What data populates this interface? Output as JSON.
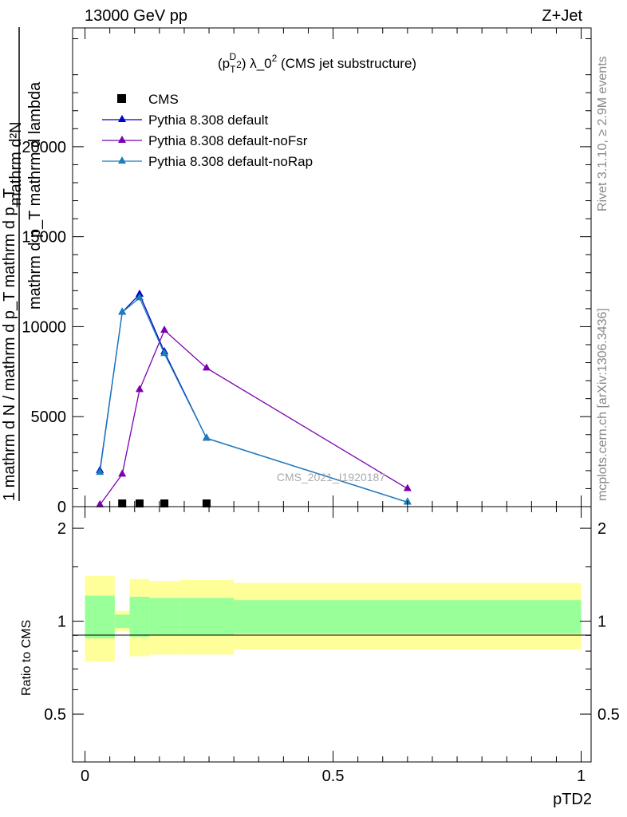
{
  "header": {
    "left": "13000 GeV pp",
    "right": "Z+Jet"
  },
  "plot_title": {
    "prefix": "(p",
    "sub": "T",
    "sup1": "D",
    "sup2": "2",
    "mid": ") λ_0",
    "sup3": "2",
    "suffix": " (CMS jet substructure)"
  },
  "side_labels": {
    "rivet": "Rivet 3.1.10, ≥ 2.9M events",
    "mcplots": "mcplots.cern.ch [arXiv:1306.3436]"
  },
  "watermark": "CMS_2021_I1920187",
  "ylabel_main": {
    "top_line": "mathrm d²N",
    "mid_line": "mathrm d p_T mathrm d lambda",
    "lower_line": "1  mathrm d N / mathrm d p_T mathrm d p_T",
    "bottom_line": "mathrm d N"
  },
  "ylabel_ratio": "Ratio to CMS",
  "xlabel": "pTD2",
  "colors": {
    "default": "#0000cc",
    "noFsr": "#7a00b0",
    "noRap": "#1a7fb8",
    "band_outer": "#ffff99",
    "band_inner": "#99ff99"
  },
  "chart_data": [
    {
      "type": "line",
      "xlim": [
        -0.025,
        1.02
      ],
      "ylim": [
        0,
        26600
      ],
      "y_ticks": [
        "0",
        "5000",
        "10000",
        "15000",
        "20000"
      ],
      "y_tick_values": [
        0,
        5000,
        10000,
        15000,
        20000
      ],
      "legend_position": "top-left",
      "data_x": [
        {
          "name": "CMS",
          "x": [
            0.075,
            0.11,
            0.16,
            0.245
          ],
          "y": [
            0,
            0,
            0,
            0
          ]
        }
      ],
      "series": [
        {
          "name": "Pythia 8.308 default",
          "color_key": "default",
          "x": [
            0.03,
            0.075,
            0.11,
            0.16,
            0.245,
            0.65
          ],
          "y": [
            2000,
            10800,
            11800,
            8600,
            3800,
            250
          ]
        },
        {
          "name": "Pythia 8.308 default-noFsr",
          "color_key": "noFsr",
          "x": [
            0.03,
            0.075,
            0.11,
            0.16,
            0.245,
            0.65
          ],
          "y": [
            100,
            1800,
            6500,
            9800,
            7700,
            1000
          ]
        },
        {
          "name": "Pythia 8.308 default-noRap",
          "color_key": "noRap",
          "x": [
            0.03,
            0.075,
            0.11,
            0.16,
            0.245,
            0.65
          ],
          "y": [
            1900,
            10800,
            11600,
            8500,
            3800,
            250
          ]
        }
      ]
    },
    {
      "type": "area",
      "xlim": [
        -0.025,
        1.02
      ],
      "ylim": [
        0.35,
        2.35
      ],
      "y_ticks": [
        "0.5",
        "1",
        "2"
      ],
      "y_tick_values": [
        0.5,
        1,
        2
      ],
      "x_ticks": [
        "0",
        "0.5",
        "1"
      ],
      "x_tick_values": [
        0,
        0.5,
        1
      ],
      "bands": [
        {
          "x0": 0.0,
          "x1": 0.06,
          "outer": [
            0.74,
            1.4
          ],
          "inner": [
            0.88,
            1.21
          ]
        },
        {
          "x0": 0.06,
          "x1": 0.09,
          "outer": [
            0.93,
            1.08
          ],
          "inner": [
            0.95,
            1.05
          ]
        },
        {
          "x0": 0.09,
          "x1": 0.13,
          "outer": [
            0.77,
            1.37
          ],
          "inner": [
            0.89,
            1.2
          ]
        },
        {
          "x0": 0.13,
          "x1": 0.19,
          "outer": [
            0.78,
            1.35
          ],
          "inner": [
            0.9,
            1.19
          ]
        },
        {
          "x0": 0.19,
          "x1": 0.3,
          "outer": [
            0.78,
            1.36
          ],
          "inner": [
            0.9,
            1.19
          ]
        },
        {
          "x0": 0.3,
          "x1": 1.0,
          "outer": [
            0.81,
            1.33
          ],
          "inner": [
            0.91,
            1.17
          ]
        }
      ]
    }
  ]
}
